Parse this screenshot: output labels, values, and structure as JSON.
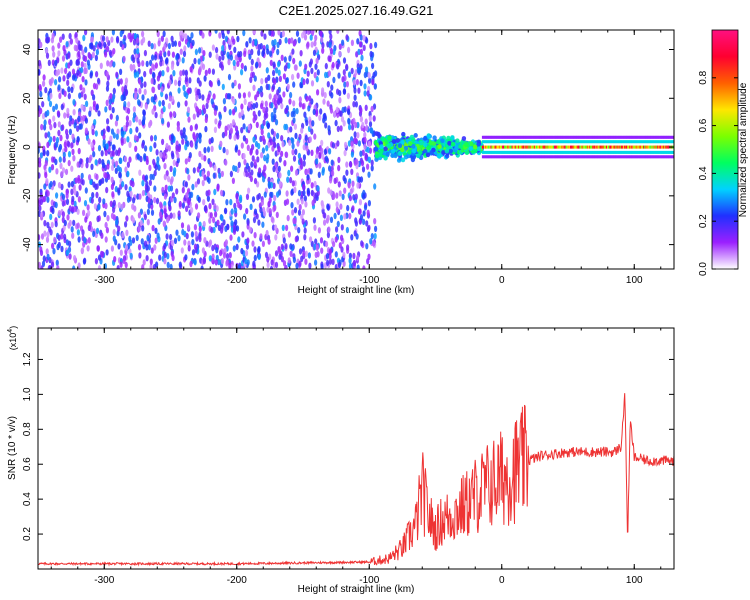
{
  "title": "C2E1.2025.027.16.49.G21",
  "chart_data": [
    {
      "type": "heatmap",
      "xlabel": "Height of straight line (km)",
      "ylabel": "Frequency (Hz)",
      "xlim": [
        -350,
        130
      ],
      "ylim": [
        -50,
        48
      ],
      "xticks": [
        -300,
        -200,
        -100,
        0,
        100
      ],
      "yticks": [
        -40,
        -20,
        0,
        20,
        40
      ],
      "colorbar": {
        "label": "Normalized spectral amplitude",
        "range": [
          0,
          1
        ],
        "ticks": [
          0.0,
          0.2,
          0.4,
          0.6,
          0.8
        ],
        "colors": [
          "#ffffff",
          "#9b20ff",
          "#2030ff",
          "#00d2ff",
          "#00ff60",
          "#7cff00",
          "#ffe600",
          "#ff6000",
          "#ff0030",
          "#ff1080"
        ]
      },
      "regions": [
        {
          "x": [
            -350,
            -95
          ],
          "description_values": "noise-dominated",
          "amplitude_range": [
            0.05,
            0.3
          ],
          "freq_spread": [
            -50,
            48
          ]
        },
        {
          "x": [
            -95,
            -15
          ],
          "amplitude_range": [
            0.2,
            0.6
          ],
          "freq_spread": [
            -8,
            8
          ]
        },
        {
          "x": [
            -15,
            130
          ],
          "amplitude_range": [
            0.5,
            0.95
          ],
          "freq_center": 0,
          "freq_width": 4
        }
      ],
      "grid": false
    },
    {
      "type": "line",
      "xlabel": "Height of straight line (km)",
      "ylabel": "SNR (10 * v/v)",
      "yscale_label": "(x10",
      "yscale_exp": "4",
      "xlim": [
        -350,
        130
      ],
      "ylim": [
        0,
        1.38
      ],
      "xticks": [
        -300,
        -200,
        -100,
        0,
        100
      ],
      "yticks": [
        0.2,
        0.4,
        0.6,
        0.8,
        1.0,
        1.2
      ],
      "yticklabels": [
        "0.2",
        "0.4",
        "0.6",
        "0.8",
        "1.0",
        "1.2"
      ],
      "color": "#ee3333",
      "series": [
        {
          "x": [
            -350,
            -300,
            -250,
            -200,
            -150,
            -100,
            -85,
            -75,
            -65,
            -60,
            -55,
            -50,
            -45,
            -40,
            -35,
            -30,
            -25,
            -20,
            -15,
            -10,
            -5,
            0,
            5,
            10,
            15,
            20,
            30,
            40,
            50,
            60,
            70,
            80,
            85,
            90,
            93,
            95,
            97,
            100,
            110,
            120,
            130
          ],
          "y": [
            0.03,
            0.03,
            0.03,
            0.03,
            0.035,
            0.04,
            0.06,
            0.12,
            0.25,
            0.45,
            0.3,
            0.22,
            0.28,
            0.3,
            0.32,
            0.35,
            0.38,
            0.42,
            0.45,
            0.48,
            0.5,
            0.52,
            0.54,
            0.57,
            0.6,
            0.62,
            0.65,
            0.66,
            0.67,
            0.67,
            0.67,
            0.67,
            0.67,
            0.7,
            1.0,
            0.15,
            0.85,
            0.64,
            0.62,
            0.62,
            0.62
          ]
        }
      ],
      "grid": false
    }
  ]
}
